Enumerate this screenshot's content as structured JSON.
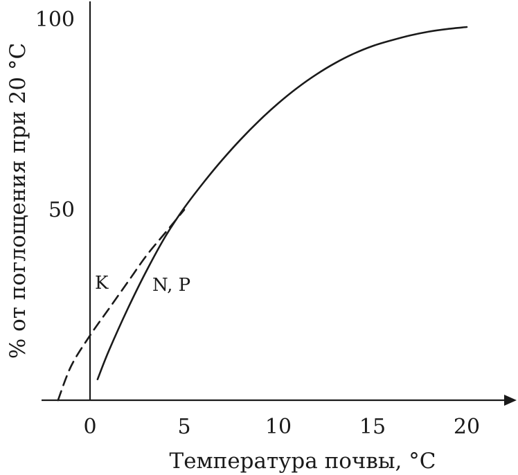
{
  "chart_data": {
    "type": "line",
    "title": "",
    "xlabel": "Температура почвы, °C",
    "ylabel": "% от поглощения при 20 °C",
    "xlim": [
      -2,
      22
    ],
    "ylim": [
      -3,
      103
    ],
    "x_ticks": [
      {
        "value": 0,
        "label": "0"
      },
      {
        "value": 5,
        "label": "5"
      },
      {
        "value": 10,
        "label": "10"
      },
      {
        "value": 15,
        "label": "15"
      },
      {
        "value": 20,
        "label": "20"
      }
    ],
    "y_ticks": [
      {
        "value": 50,
        "label": "50"
      },
      {
        "value": 100,
        "label": "100"
      }
    ],
    "grid": false,
    "series": [
      {
        "name": "N, P",
        "style": "solid",
        "color": "#1a1a1a",
        "x": [
          0.4,
          1,
          2,
          3,
          4,
          5,
          6,
          7,
          8,
          9,
          10,
          11,
          12,
          13,
          14,
          15,
          16,
          17,
          18,
          19,
          20
        ],
        "y": [
          5.5,
          13,
          24,
          34,
          43,
          50.5,
          57,
          63,
          68.5,
          73.5,
          78,
          82,
          85.5,
          88.5,
          91,
          93,
          94.5,
          95.8,
          96.8,
          97.5,
          98
        ]
      },
      {
        "name": "K",
        "style": "dashed",
        "color": "#1a1a1a",
        "x": [
          -1.7,
          -1,
          0,
          1,
          2,
          3,
          4,
          5
        ],
        "y": [
          0,
          9,
          17,
          24,
          31,
          38,
          44,
          50
        ]
      }
    ]
  }
}
